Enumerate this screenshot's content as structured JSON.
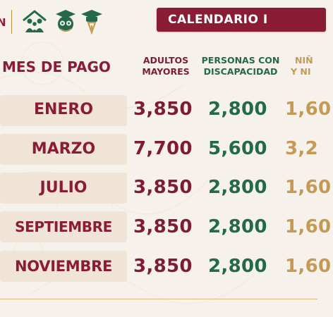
{
  "header": {
    "logo_partial": "N",
    "title": "CALENDARIO I",
    "icons": [
      "family-icon",
      "graduation-owl-icon",
      "graduation-cap-icon"
    ]
  },
  "columns": {
    "month": "MES DE PAGO",
    "adultos": [
      "ADULTOS",
      "MAYORES"
    ],
    "discapacidad": [
      "PERSONAS CON",
      "DISCAPACIDAD"
    ],
    "ninos": [
      "NIÑ",
      "Y NI"
    ]
  },
  "rows": [
    {
      "month": "ENERO",
      "adultos": "3,850",
      "discapacidad": "2,800",
      "ninos": "1,60"
    },
    {
      "month": "MARZO",
      "adultos": "7,700",
      "discapacidad": "5,600",
      "ninos": "3,2"
    },
    {
      "month": "JULIO",
      "adultos": "3,850",
      "discapacidad": "2,800",
      "ninos": "1,60"
    },
    {
      "month": "SEPTIEMBRE",
      "adultos": "3,850",
      "discapacidad": "2,800",
      "ninos": "1,60"
    },
    {
      "month": "NOVIEMBRE",
      "adultos": "3,850",
      "discapacidad": "2,800",
      "ninos": "1,60"
    }
  ],
  "colors": {
    "maroon": "#8a1c36",
    "green": "#23694a",
    "gold": "#c49a55",
    "background": "#f6f1ea"
  }
}
